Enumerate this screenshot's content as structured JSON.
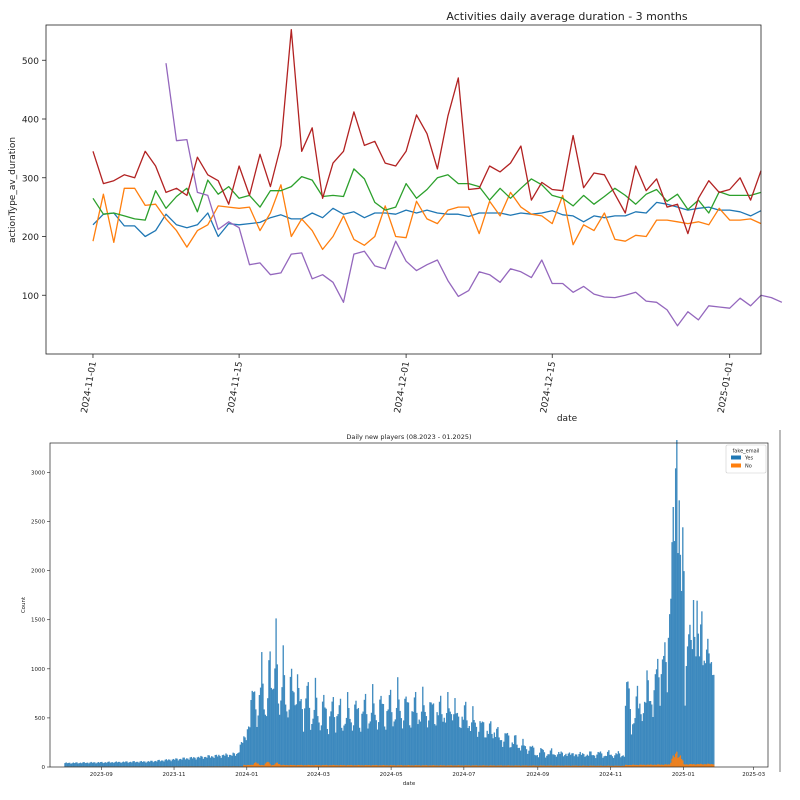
{
  "chart_data": [
    {
      "type": "line",
      "title": "Activities daily average duration - 3 months",
      "xlabel": "date",
      "ylabel": "actionType_av_duration",
      "ylim": [
        0,
        560
      ],
      "yticks": [
        100,
        200,
        300,
        400,
        500
      ],
      "xticks": [
        {
          "label": "2024-11-01",
          "day": 0
        },
        {
          "label": "2024-11-15",
          "day": 14
        },
        {
          "label": "2024-12-01",
          "day": 30
        },
        {
          "label": "2024-12-15",
          "day": 44
        },
        {
          "label": "2025-01-01",
          "day": 61
        }
      ],
      "x_start": "2024-11-01",
      "x_range_days": [
        -4.5,
        64
      ],
      "series": [
        {
          "name": "blue",
          "color": "#1f77b4",
          "start_day": 0,
          "values": [
            220,
            238,
            240,
            218,
            218,
            200,
            210,
            238,
            220,
            215,
            220,
            240,
            200,
            222,
            220,
            222,
            224,
            232,
            237,
            230,
            230,
            240,
            232,
            248,
            238,
            242,
            232,
            240,
            240,
            238,
            245,
            240,
            245,
            240,
            238,
            238,
            234,
            240,
            240,
            240,
            236,
            240,
            238,
            240,
            244,
            237,
            235,
            225,
            235,
            232,
            235,
            235,
            242,
            240,
            258,
            255,
            250,
            245,
            248,
            250,
            245,
            245,
            242,
            235,
            244
          ]
        },
        {
          "name": "orange",
          "color": "#ff7f0e",
          "start_day": 0,
          "values": [
            192,
            272,
            190,
            282,
            282,
            253,
            255,
            230,
            210,
            182,
            210,
            220,
            252,
            250,
            248,
            250,
            210,
            240,
            288,
            200,
            230,
            210,
            178,
            200,
            235,
            195,
            185,
            200,
            252,
            200,
            198,
            260,
            230,
            222,
            245,
            250,
            250,
            205,
            260,
            235,
            275,
            250,
            238,
            235,
            222,
            270,
            186,
            220,
            210,
            240,
            195,
            192,
            202,
            200,
            228,
            228,
            225,
            222,
            225,
            220,
            248,
            228,
            228,
            230,
            222
          ]
        },
        {
          "name": "green",
          "color": "#2ca02c",
          "start_day": 0,
          "values": [
            265,
            238,
            240,
            235,
            230,
            228,
            278,
            248,
            268,
            282,
            242,
            296,
            272,
            285,
            265,
            270,
            250,
            278,
            278,
            285,
            302,
            296,
            268,
            270,
            268,
            315,
            298,
            258,
            245,
            250,
            290,
            265,
            280,
            300,
            305,
            290,
            290,
            285,
            262,
            282,
            265,
            282,
            298,
            288,
            270,
            265,
            252,
            270,
            255,
            268,
            282,
            270,
            255,
            272,
            280,
            260,
            272,
            246,
            262,
            240,
            276,
            270,
            270,
            270,
            275
          ]
        },
        {
          "name": "red",
          "color": "#b22222",
          "start_day": 0,
          "values": [
            345,
            290,
            295,
            305,
            300,
            345,
            320,
            275,
            282,
            270,
            335,
            305,
            295,
            255,
            320,
            270,
            340,
            285,
            355,
            552,
            345,
            385,
            265,
            325,
            345,
            412,
            355,
            362,
            325,
            320,
            345,
            407,
            375,
            315,
            405,
            470,
            280,
            282,
            320,
            310,
            325,
            354,
            262,
            292,
            280,
            278,
            372,
            283,
            308,
            305,
            272,
            240,
            320,
            278,
            298,
            250,
            255,
            205,
            265,
            295,
            275,
            280,
            300,
            262,
            312
          ]
        },
        {
          "name": "purple",
          "color": "#9467bd",
          "start_day": 7,
          "values": [
            495,
            363,
            365,
            275,
            270,
            212,
            225,
            215,
            152,
            155,
            135,
            138,
            170,
            172,
            128,
            135,
            122,
            88,
            170,
            175,
            150,
            145,
            192,
            158,
            142,
            152,
            160,
            125,
            98,
            108,
            140,
            135,
            122,
            145,
            140,
            130,
            160,
            120,
            120,
            105,
            115,
            102,
            97,
            96,
            100,
            105,
            90,
            88,
            75,
            48,
            72,
            58,
            82,
            80,
            78,
            95,
            82,
            100,
            96,
            88
          ]
        }
      ]
    },
    {
      "type": "bar",
      "title": "Daily new players (08.2023 - 01.2025)",
      "xlabel": "date",
      "ylabel": "Count",
      "ylim": [
        0,
        3300
      ],
      "yticks": [
        0,
        500,
        1000,
        1500,
        2000,
        2500,
        3000
      ],
      "legend": {
        "title": "fake_email",
        "entries": [
          {
            "label": "Yes",
            "color": "#1f77b4"
          },
          {
            "label": "No",
            "color": "#ff7f0e"
          }
        ],
        "placement": "top-right"
      },
      "x_start": "2023-08-01",
      "x_range_days": [
        -12,
        590
      ],
      "xticks": [
        {
          "label": "2023-09",
          "day": 31
        },
        {
          "label": "2023-11",
          "day": 92
        },
        {
          "label": "2024-01",
          "day": 153
        },
        {
          "label": "2024-03",
          "day": 213
        },
        {
          "label": "2024-05",
          "day": 274
        },
        {
          "label": "2024-07",
          "day": 335
        },
        {
          "label": "2024-09",
          "day": 397
        },
        {
          "label": "2024-11",
          "day": 458
        },
        {
          "label": "2025-01",
          "day": 519
        },
        {
          "label": "2025-03",
          "day": 578
        }
      ],
      "series": [
        {
          "name": "Yes",
          "color": "#1f77b4",
          "segments": [
            {
              "from_day": 0,
              "to_day": 70,
              "base": [
                40,
                55
              ],
              "peaks": []
            },
            {
              "from_day": 70,
              "to_day": 145,
              "base": [
                55,
                130
              ],
              "peaks": []
            },
            {
              "from_day": 145,
              "to_day": 155,
              "base": [
                150,
                420
              ],
              "peaks": []
            },
            {
              "from_day": 155,
              "to_day": 200,
              "base": [
                420,
                600
              ],
              "peaks": [
                [
                  158,
                  920
                ],
                [
                  165,
                  1130
                ],
                [
                  172,
                  1240
                ],
                [
                  177,
                  1300
                ],
                [
                  183,
                  1050
                ],
                [
                  190,
                  930
                ],
                [
                  195,
                  880
                ]
              ]
            },
            {
              "from_day": 200,
              "to_day": 232,
              "base": [
                430,
                380
              ],
              "peaks": [
                [
                  203,
                  880
                ],
                [
                  210,
                  790
                ],
                [
                  217,
                  720
                ],
                [
                  224,
                  700
                ],
                [
                  230,
                  710
                ]
              ]
            },
            {
              "from_day": 232,
              "to_day": 330,
              "base": [
                380,
                470
              ],
              "peaks": [
                [
                  237,
                  700
                ],
                [
                  244,
                  720
                ],
                [
                  251,
                  760
                ],
                [
                  258,
                  770
                ],
                [
                  265,
                  780
                ],
                [
                  272,
                  800
                ],
                [
                  279,
                  830
                ],
                [
                  286,
                  780
                ],
                [
                  293,
                  760
                ],
                [
                  300,
                  740
                ],
                [
                  307,
                  720
                ],
                [
                  314,
                  700
                ],
                [
                  321,
                  690
                ],
                [
                  327,
                  670
                ]
              ]
            },
            {
              "from_day": 330,
              "to_day": 366,
              "base": [
                430,
                250
              ],
              "peaks": [
                [
                  335,
                  650
                ],
                [
                  342,
                  560
                ],
                [
                  349,
                  500
                ],
                [
                  356,
                  450
                ],
                [
                  362,
                  420
                ]
              ]
            },
            {
              "from_day": 366,
              "to_day": 395,
              "base": [
                240,
                130
              ],
              "peaks": [
                [
                  370,
                  380
                ],
                [
                  377,
                  320
                ],
                [
                  384,
                  260
                ],
                [
                  391,
                  230
                ]
              ]
            },
            {
              "from_day": 395,
              "to_day": 470,
              "base": [
                120,
                110
              ],
              "peaks": [
                [
                  400,
                  190
                ],
                [
                  408,
                  170
                ],
                [
                  416,
                  160
                ],
                [
                  424,
                  155
                ],
                [
                  432,
                  150
                ],
                [
                  440,
                  150
                ],
                [
                  448,
                  155
                ],
                [
                  456,
                  150
                ],
                [
                  464,
                  150
                ]
              ]
            },
            {
              "from_day": 470,
              "to_day": 505,
              "base": [
                300,
                780
              ],
              "peaks": [
                [
                  472,
                  1050
                ],
                [
                  480,
                  850
                ],
                [
                  488,
                  960
                ],
                [
                  496,
                  1100
                ],
                [
                  502,
                  1350
                ]
              ]
            },
            {
              "from_day": 505,
              "to_day": 520,
              "base": [
                800,
                1300
              ],
              "peaks": [
                [
                  508,
                  1950
                ],
                [
                  510,
                  2500
                ],
                [
                  513,
                  3200
                ],
                [
                  515,
                  2700
                ],
                [
                  518,
                  2100
                ]
              ]
            },
            {
              "from_day": 520,
              "to_day": 545,
              "base": [
                700,
                620
              ],
              "peaks": [
                [
                  523,
                  1600
                ],
                [
                  527,
                  1550
                ],
                [
                  530,
                  1610
                ],
                [
                  534,
                  1550
                ],
                [
                  538,
                  1300
                ],
                [
                  541,
                  1180
                ],
                [
                  544,
                  1100
                ]
              ]
            }
          ]
        },
        {
          "name": "No",
          "color": "#ff7f0e",
          "segments": [
            {
              "from_day": 0,
              "to_day": 150,
              "base": [
                3,
                6
              ],
              "peaks": []
            },
            {
              "from_day": 150,
              "to_day": 470,
              "base": [
                20,
                12
              ],
              "peaks": [
                [
                  160,
                  50
                ],
                [
                  170,
                  55
                ],
                [
                  178,
                  45
                ]
              ]
            },
            {
              "from_day": 470,
              "to_day": 545,
              "base": [
                20,
                30
              ],
              "peaks": [
                [
                  510,
                  110
                ],
                [
                  513,
                  150
                ],
                [
                  516,
                  120
                ]
              ]
            }
          ]
        }
      ]
    }
  ]
}
